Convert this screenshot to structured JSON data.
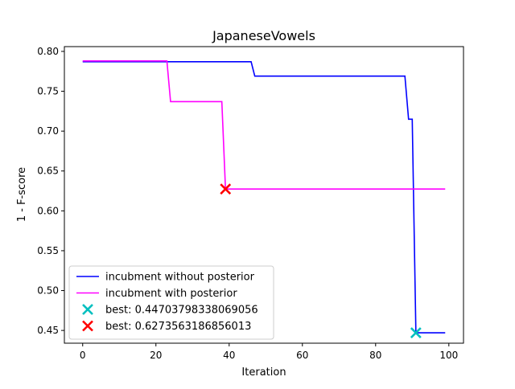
{
  "chart_data": {
    "type": "line",
    "title": "JapaneseVowels",
    "xlabel": "Iteration",
    "ylabel": "1 - F-score",
    "xlim": [
      -5,
      104
    ],
    "ylim": [
      0.434,
      0.806
    ],
    "x_ticks": [
      0,
      20,
      40,
      60,
      80,
      100
    ],
    "y_ticks": [
      0.45,
      0.5,
      0.55,
      0.6,
      0.65,
      0.7,
      0.75,
      0.8
    ],
    "y_tick_labels": [
      "0.45",
      "0.50",
      "0.55",
      "0.60",
      "0.65",
      "0.70",
      "0.75",
      "0.80"
    ],
    "grid": false,
    "legend_position": "lower-left",
    "series": [
      {
        "name": "incubment without posterior",
        "color": "#0000ff",
        "points": [
          [
            0,
            0.787
          ],
          [
            46,
            0.787
          ],
          [
            47,
            0.769
          ],
          [
            88,
            0.769
          ],
          [
            89,
            0.715
          ],
          [
            90,
            0.715
          ],
          [
            91,
            0.447
          ],
          [
            99,
            0.447
          ]
        ]
      },
      {
        "name": "incubment with posterior",
        "color": "#ff00ff",
        "points": [
          [
            0,
            0.788
          ],
          [
            23,
            0.788
          ],
          [
            24,
            0.737
          ],
          [
            38,
            0.737
          ],
          [
            39,
            0.6274
          ],
          [
            99,
            0.6274
          ]
        ]
      }
    ],
    "markers": [
      {
        "name": "best: 0.44703798338069056",
        "x": 91,
        "y": 0.447,
        "color": "#00bfbf"
      },
      {
        "name": "best: 0.6273563186856013",
        "x": 39,
        "y": 0.6274,
        "color": "#ff0000"
      }
    ]
  }
}
